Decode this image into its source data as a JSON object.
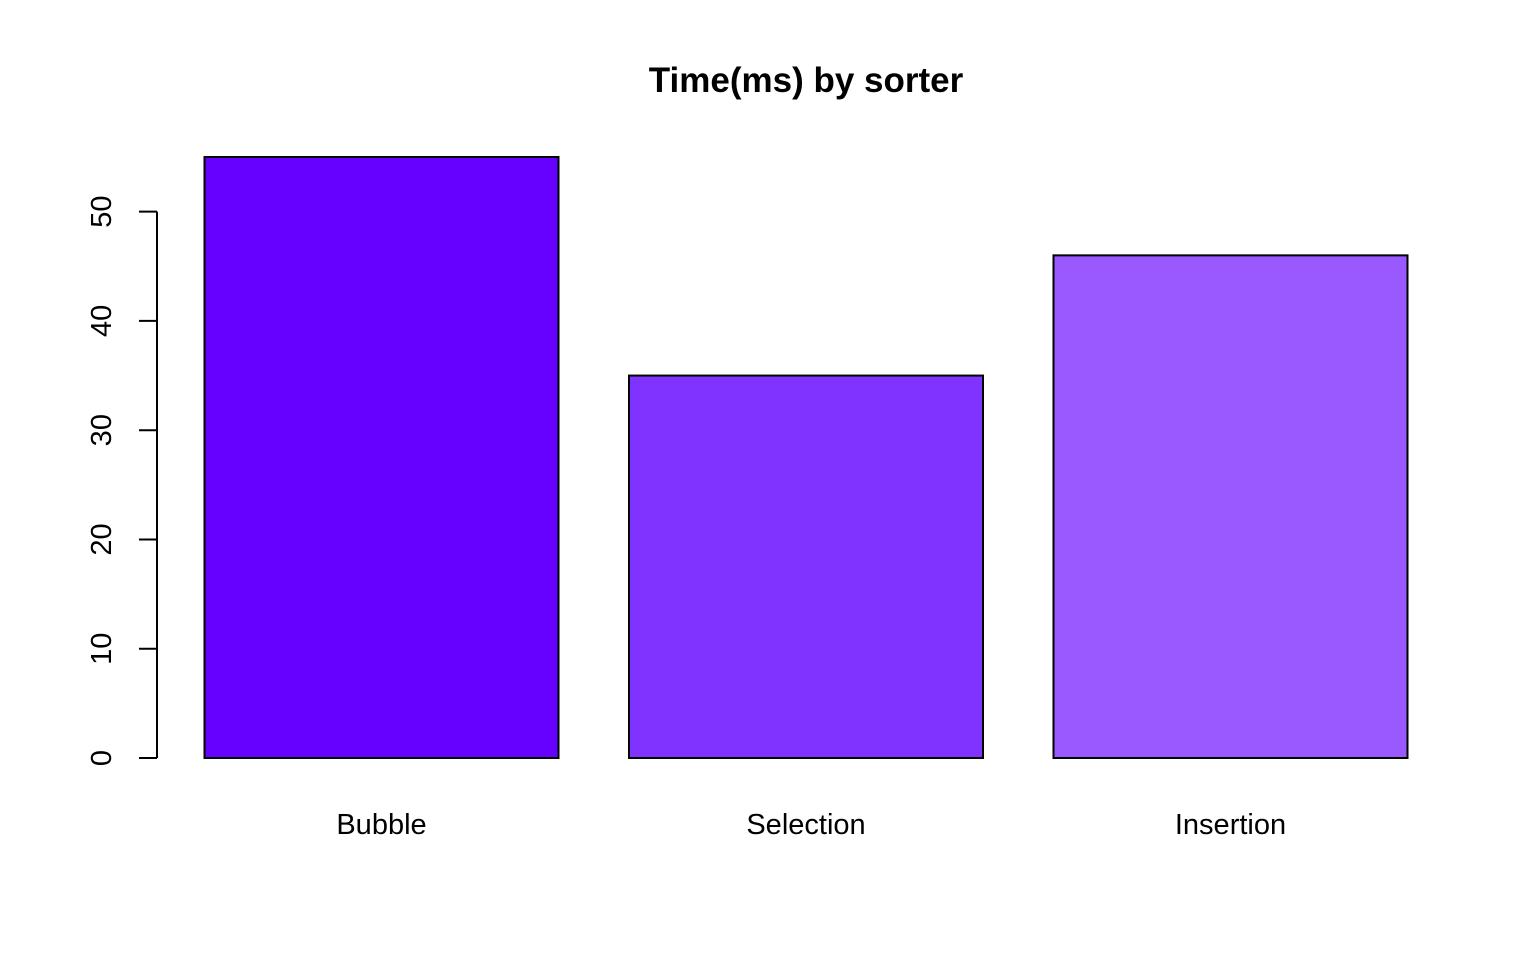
{
  "chart_data": {
    "type": "bar",
    "title": "Time(ms) by sorter",
    "xlabel": "",
    "ylabel": "",
    "categories": [
      "Bubble",
      "Selection",
      "Insertion"
    ],
    "values": [
      55,
      35,
      46
    ],
    "colors": [
      "#6600FF",
      "#8033FF",
      "#9959FF"
    ],
    "ylim": [
      0,
      55
    ],
    "yticks": [
      0,
      10,
      20,
      30,
      40,
      50
    ],
    "grid": false,
    "legend": "none"
  }
}
